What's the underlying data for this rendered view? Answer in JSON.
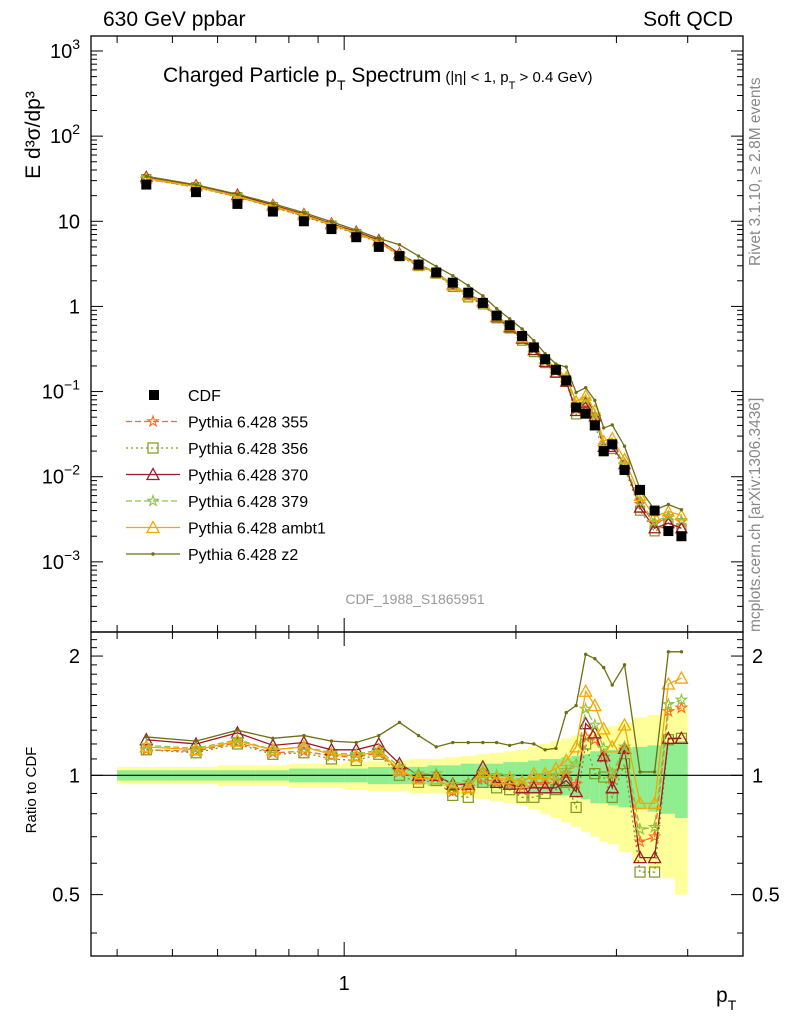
{
  "header": {
    "left": "630 GeV ppbar",
    "right": "Soft QCD"
  },
  "side_labels": {
    "rivet": "Rivet 3.1.10, ≥ 2.8M events",
    "mcplots": "mcplots.cern.ch [arXiv:1306.3436]"
  },
  "chart_data": {
    "type": "line",
    "title_main": "Charged Particle p",
    "title_main_sub": "T",
    "title_main_rest": " Spectrum",
    "title_cut": "(|η| < 1, p",
    "title_cut_sub": "T",
    "title_cut_rest": " > 0.4 GeV)",
    "ylabel": "E d³σ/dp³",
    "ratio_ylabel": "Ratio to CDF",
    "xlabel": "p",
    "xlabel_sub": "T",
    "analysis_id": "CDF_1988_S1865951",
    "xscale": "log",
    "yscale": "log",
    "xlim": [
      0.36,
      5.0
    ],
    "ylim": [
      0.00015,
      1500
    ],
    "ratio_ylim": [
      0.35,
      2.3
    ],
    "y_ticks": [
      {
        "value": 0.001,
        "base": "10",
        "exp": "−3"
      },
      {
        "value": 0.01,
        "base": "10",
        "exp": "−2"
      },
      {
        "value": 0.1,
        "base": "10",
        "exp": "−1"
      },
      {
        "value": 1,
        "base": "1",
        "exp": ""
      },
      {
        "value": 10,
        "base": "10",
        "exp": ""
      },
      {
        "value": 100,
        "base": "10",
        "exp": "2"
      },
      {
        "value": 1000,
        "base": "10",
        "exp": "3"
      }
    ],
    "ratio_ticks": [
      {
        "value": 0.5,
        "label": "0.5"
      },
      {
        "value": 1,
        "label": "1"
      },
      {
        "value": 2,
        "label": "2"
      }
    ],
    "x_tick_labels": [
      {
        "value": 1,
        "label": "1"
      }
    ],
    "x": [
      0.45,
      0.55,
      0.65,
      0.75,
      0.85,
      0.95,
      1.05,
      1.15,
      1.25,
      1.35,
      1.45,
      1.55,
      1.65,
      1.75,
      1.85,
      1.95,
      2.05,
      2.15,
      2.25,
      2.35,
      2.45,
      2.55,
      2.65,
      2.75,
      2.85,
      2.95,
      3.1,
      3.3,
      3.5,
      3.7,
      3.9
    ],
    "cdf": {
      "name": "CDF",
      "y": [
        27,
        22,
        16,
        13,
        10,
        8.1,
        6.5,
        5.0,
        3.9,
        3.1,
        2.5,
        1.9,
        1.45,
        1.1,
        0.78,
        0.6,
        0.45,
        0.33,
        0.24,
        0.18,
        0.135,
        0.065,
        0.055,
        0.04,
        0.02,
        0.024,
        0.012,
        0.007,
        0.004,
        0.0023,
        0.002
      ],
      "band_inner": [
        0.03,
        0.03,
        0.03,
        0.03,
        0.04,
        0.04,
        0.04,
        0.05,
        0.05,
        0.05,
        0.06,
        0.06,
        0.07,
        0.07,
        0.07,
        0.08,
        0.08,
        0.09,
        0.1,
        0.1,
        0.11,
        0.12,
        0.13,
        0.15,
        0.15,
        0.16,
        0.17,
        0.18,
        0.19,
        0.2,
        0.22
      ],
      "band_outer": [
        0.05,
        0.05,
        0.06,
        0.06,
        0.07,
        0.07,
        0.08,
        0.09,
        0.09,
        0.1,
        0.1,
        0.11,
        0.12,
        0.13,
        0.14,
        0.15,
        0.16,
        0.18,
        0.2,
        0.22,
        0.24,
        0.26,
        0.28,
        0.3,
        0.32,
        0.33,
        0.36,
        0.4,
        0.42,
        0.45,
        0.5
      ]
    },
    "series": [
      {
        "name": "Pythia 6.428 355",
        "color": "#ff6a1f",
        "marker": "star",
        "dash": "6,3",
        "ratio": [
          1.16,
          1.15,
          1.21,
          1.14,
          1.15,
          1.12,
          1.11,
          1.14,
          1.02,
          0.98,
          0.99,
          0.91,
          0.92,
          0.98,
          0.96,
          0.95,
          0.92,
          0.95,
          0.95,
          0.97,
          1.01,
          0.95,
          1.25,
          1.23,
          1.11,
          0.98,
          1.16,
          0.68,
          0.7,
          1.45,
          1.48
        ]
      },
      {
        "name": "Pythia 6.428 356",
        "color": "#7b9a1a",
        "marker": "square",
        "dash": "2,3",
        "ratio": [
          1.16,
          1.14,
          1.2,
          1.13,
          1.14,
          1.1,
          1.09,
          1.13,
          1.0,
          0.96,
          0.97,
          0.89,
          0.88,
          0.96,
          0.93,
          0.92,
          0.88,
          0.88,
          0.9,
          0.92,
          0.96,
          0.83,
          1.2,
          1.01,
          0.99,
          0.88,
          1.07,
          0.57,
          0.57,
          1.23,
          1.24
        ]
      },
      {
        "name": "Pythia 6.428 370",
        "color": "#9b1b2b",
        "marker": "triangle",
        "dash": "",
        "ratio": [
          1.23,
          1.2,
          1.28,
          1.19,
          1.21,
          1.16,
          1.16,
          1.2,
          1.07,
          1.0,
          1.0,
          0.95,
          0.95,
          1.05,
          0.96,
          0.95,
          0.93,
          0.93,
          0.93,
          0.93,
          0.97,
          0.91,
          1.35,
          1.28,
          1.12,
          0.93,
          1.17,
          0.62,
          0.62,
          1.24,
          1.24
        ]
      },
      {
        "name": "Pythia 6.428 379",
        "color": "#8cc63f",
        "marker": "star",
        "dash": "6,3",
        "ratio": [
          1.19,
          1.17,
          1.23,
          1.16,
          1.18,
          1.14,
          1.13,
          1.16,
          1.05,
          1.01,
          1.01,
          0.95,
          0.96,
          1.01,
          1.0,
          0.99,
          0.97,
          0.99,
          0.99,
          1.0,
          1.03,
          1.07,
          1.47,
          1.34,
          1.17,
          1.01,
          1.18,
          0.73,
          0.74,
          1.51,
          1.55
        ]
      },
      {
        "name": "Pythia 6.428 ambt1",
        "color": "#f5a700",
        "marker": "triangle",
        "dash": "",
        "ratio": [
          1.18,
          1.16,
          1.22,
          1.16,
          1.18,
          1.13,
          1.12,
          1.15,
          1.03,
          0.98,
          0.98,
          0.93,
          0.93,
          1.02,
          0.98,
          0.98,
          0.96,
          1.01,
          1.01,
          1.04,
          1.09,
          1.18,
          1.63,
          1.5,
          1.31,
          1.18,
          1.34,
          0.85,
          0.85,
          1.7,
          1.76
        ]
      },
      {
        "name": "Pythia 6.428 z2",
        "color": "#6f6f12",
        "marker": "dot",
        "dash": "",
        "ratio": [
          1.25,
          1.22,
          1.3,
          1.24,
          1.26,
          1.22,
          1.21,
          1.26,
          1.36,
          1.26,
          1.18,
          1.21,
          1.21,
          1.21,
          1.21,
          1.19,
          1.21,
          1.2,
          1.16,
          1.17,
          1.44,
          1.5,
          2.02,
          1.97,
          1.87,
          1.69,
          1.9,
          1.02,
          1.02,
          2.05,
          2.05
        ]
      }
    ]
  }
}
